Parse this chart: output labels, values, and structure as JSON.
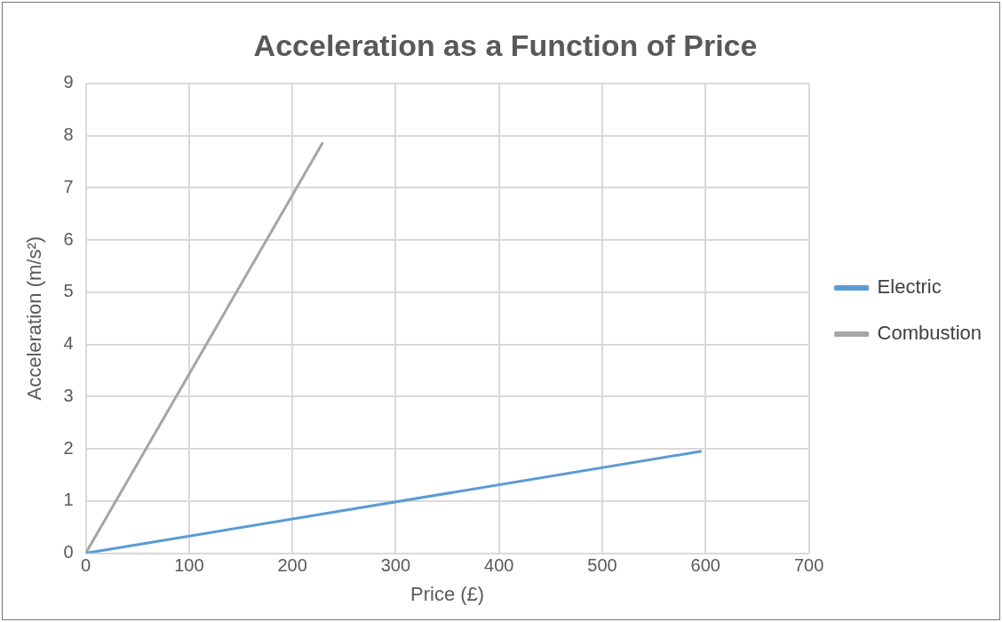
{
  "chart_data": {
    "type": "line",
    "title": "Acceleration as a Function of Price",
    "xlabel": "Price (£)",
    "ylabel": "Acceleration (m/s²)",
    "series": [
      {
        "name": "Electric",
        "color": "#5b9bd5",
        "x": [
          0,
          595
        ],
        "values": [
          0,
          1.95
        ]
      },
      {
        "name": "Combustion",
        "color": "#a5a5a5",
        "x": [
          0,
          229
        ],
        "values": [
          0,
          7.85
        ]
      }
    ],
    "xlim": [
      0,
      700
    ],
    "xticks": [
      0,
      100,
      200,
      300,
      400,
      500,
      600,
      700
    ],
    "ylim": [
      0,
      9
    ],
    "yticks": [
      0,
      1,
      2,
      3,
      4,
      5,
      6,
      7,
      8,
      9
    ],
    "grid": true,
    "legend": "right",
    "marker": "none",
    "line_style": "solid"
  }
}
